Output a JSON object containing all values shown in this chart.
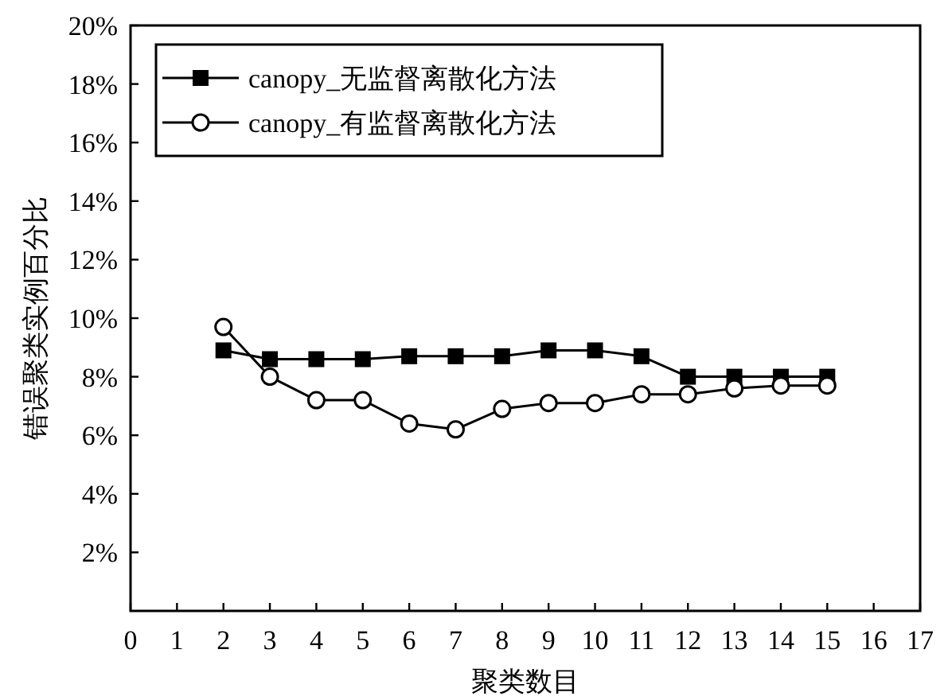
{
  "chart_data": {
    "type": "line",
    "xlabel": "聚类数目",
    "ylabel": "错误聚类实例百分比",
    "x": [
      2,
      3,
      4,
      5,
      6,
      7,
      8,
      9,
      10,
      11,
      12,
      13,
      14,
      15
    ],
    "series": [
      {
        "name": "canopy_无监督离散化方法",
        "color": "#000000",
        "marker": "square",
        "values": [
          8.9,
          8.6,
          8.6,
          8.6,
          8.7,
          8.7,
          8.7,
          8.9,
          8.9,
          8.7,
          8.0,
          8.0,
          8.0,
          8.0
        ]
      },
      {
        "name": "canopy_有监督离散化方法",
        "color": "#000000",
        "marker": "circle",
        "values": [
          9.7,
          8.0,
          7.2,
          7.2,
          6.4,
          6.2,
          6.9,
          7.1,
          7.1,
          7.4,
          7.4,
          7.6,
          7.7,
          7.7
        ]
      }
    ],
    "xlim": [
      0,
      17
    ],
    "xticks": [
      0,
      1,
      2,
      3,
      4,
      5,
      6,
      7,
      8,
      9,
      10,
      11,
      12,
      13,
      14,
      15,
      16,
      17
    ],
    "ylim": [
      0,
      20
    ],
    "yticks": [
      {
        "value": 2,
        "label": "2%"
      },
      {
        "value": 4,
        "label": "4%"
      },
      {
        "value": 6,
        "label": "6%"
      },
      {
        "value": 8,
        "label": "8%"
      },
      {
        "value": 10,
        "label": "10%"
      },
      {
        "value": 12,
        "label": "12%"
      },
      {
        "value": 14,
        "label": "14%"
      },
      {
        "value": 16,
        "label": "16%"
      },
      {
        "value": 18,
        "label": "18%"
      },
      {
        "value": 20,
        "label": "20%"
      }
    ],
    "grid": false,
    "legend": "top left",
    "line_style": "solid"
  }
}
